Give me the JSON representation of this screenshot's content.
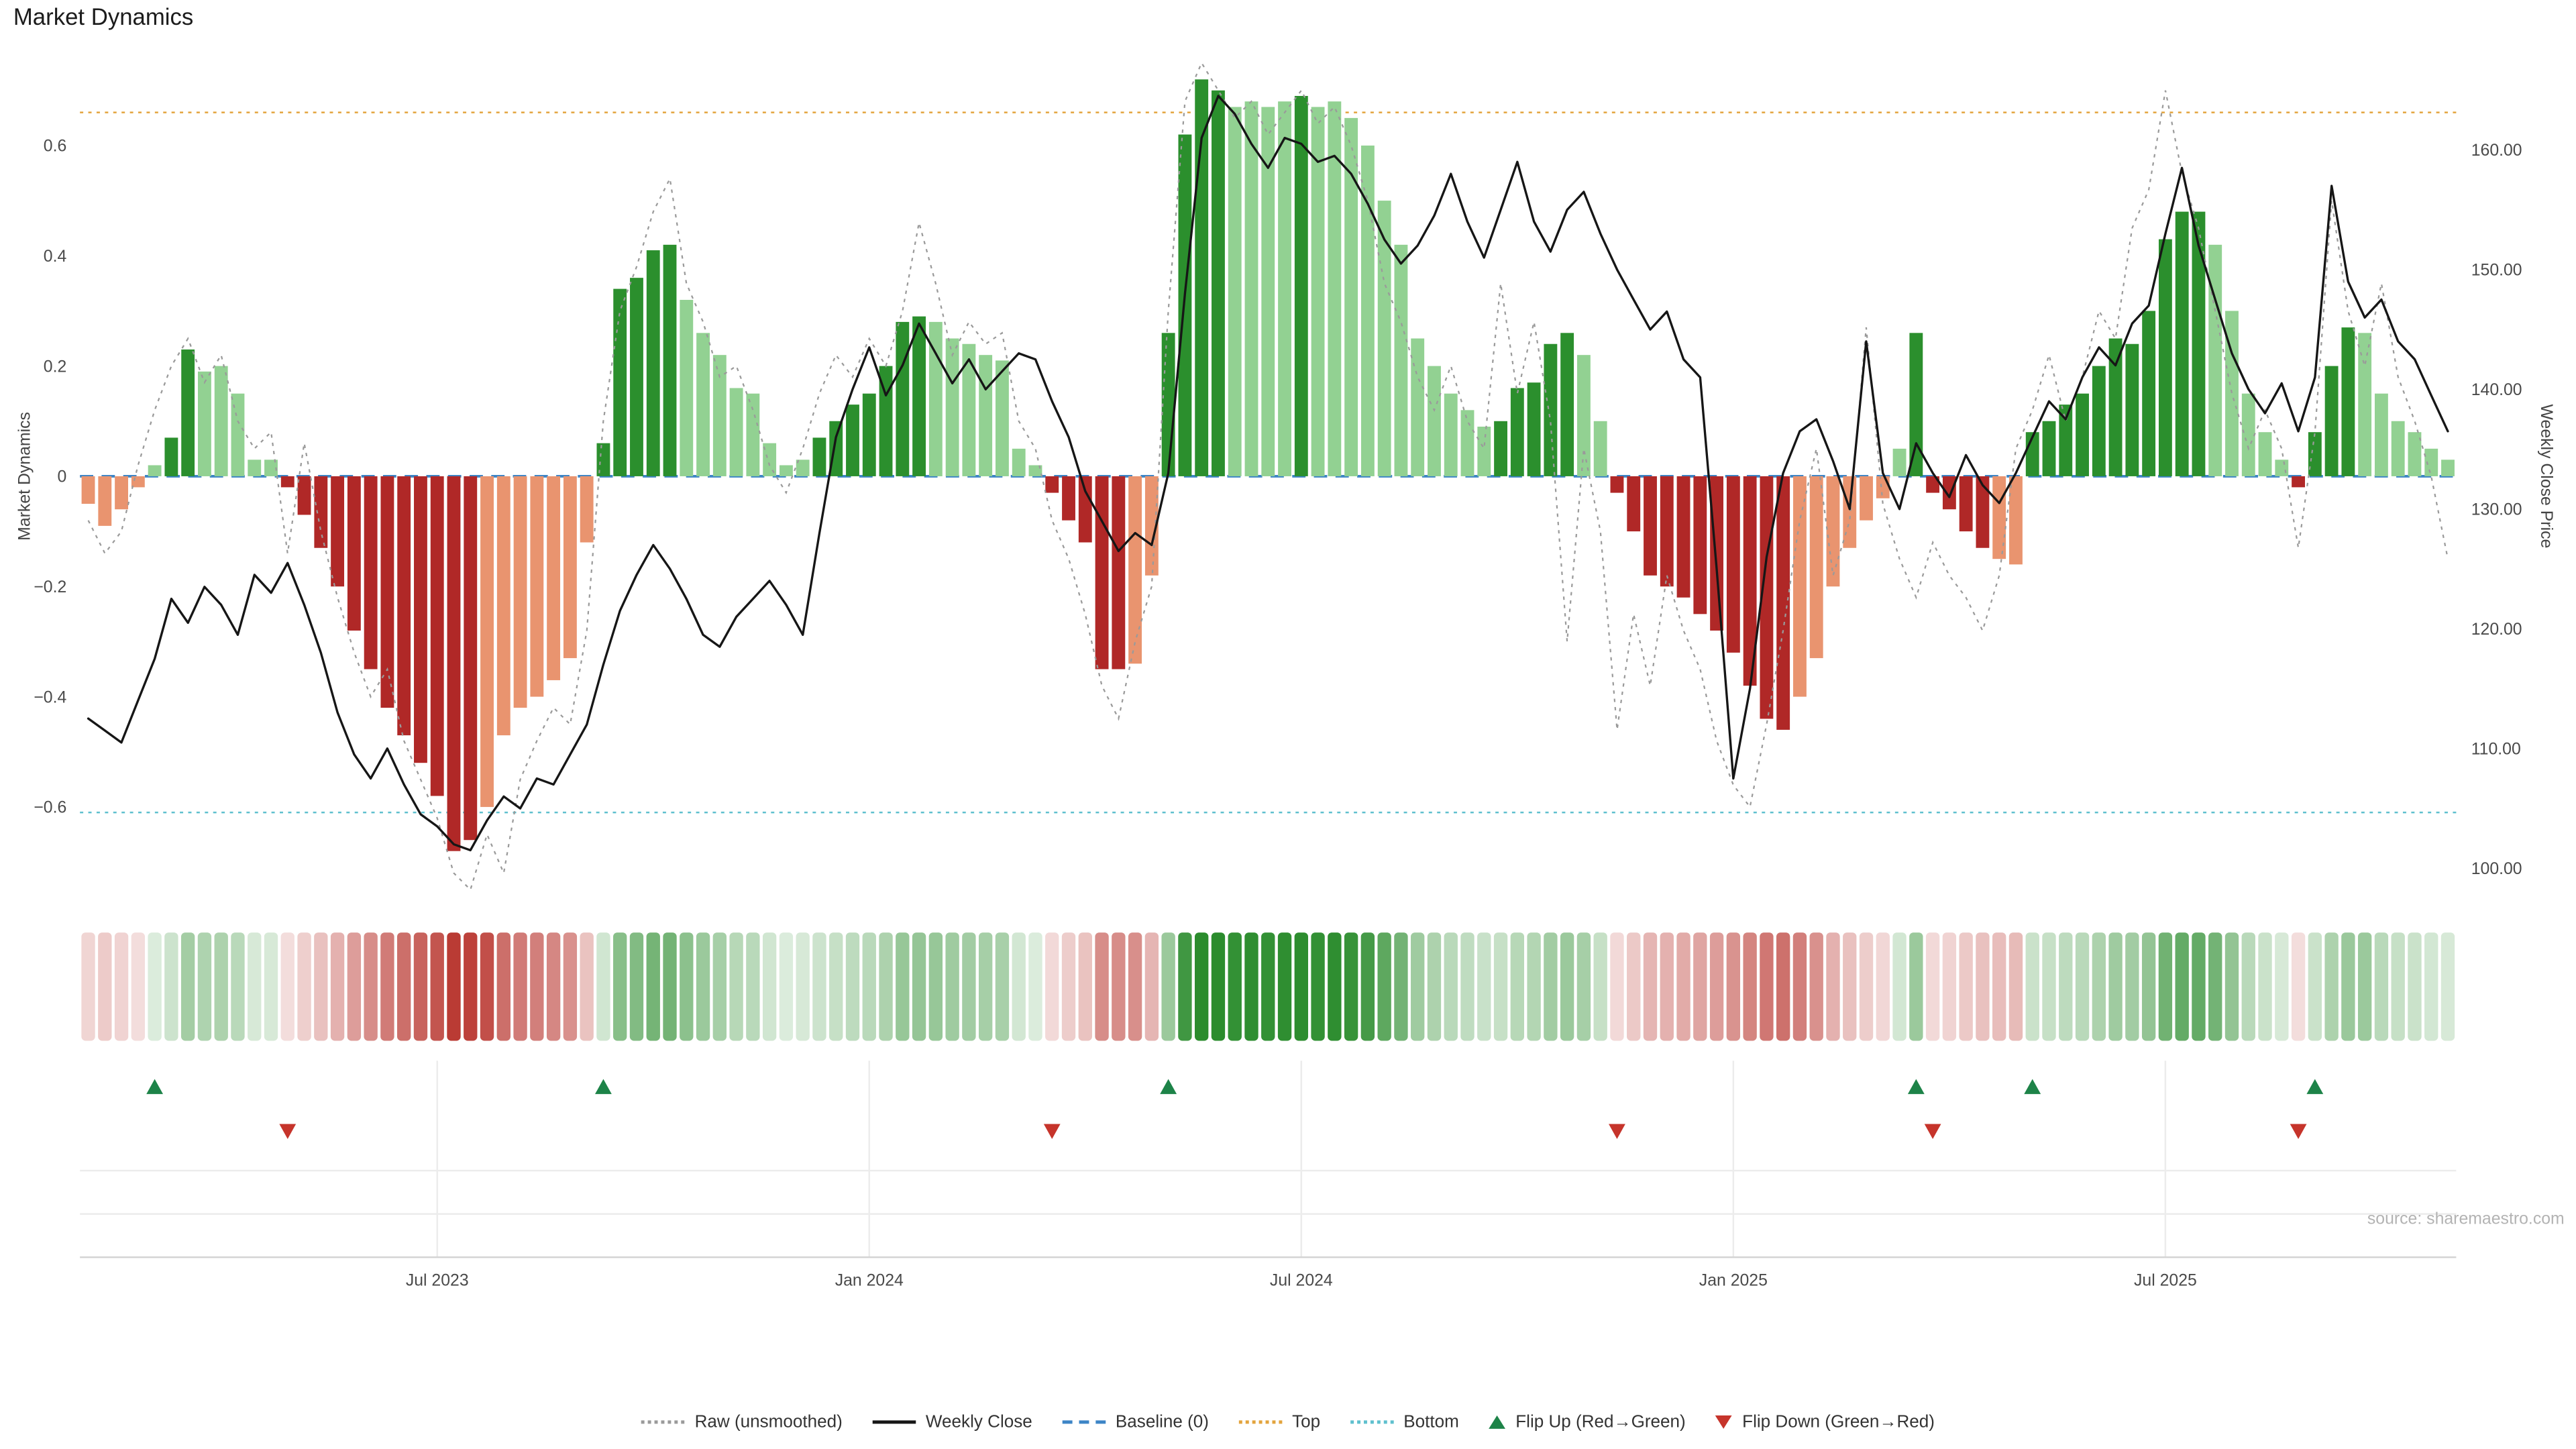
{
  "page": {
    "title": "Market Dynamics",
    "source": "source: sharemaestro.com"
  },
  "chart_data": {
    "type": "bar",
    "title": "Market Dynamics",
    "left_axis": {
      "label": "Market Dynamics",
      "range": [
        -0.76,
        0.76
      ],
      "tick_labels": [
        "0.6",
        "0.4",
        "0.2",
        "0",
        "−0.2",
        "−0.4",
        "−0.6"
      ],
      "tick_values": [
        0.6,
        0.4,
        0.2,
        0,
        -0.2,
        -0.4,
        -0.6
      ]
    },
    "right_axis": {
      "label": "Weekly Close Price",
      "range": [
        97.5,
        167.5
      ],
      "tick_labels": [
        "160.00",
        "150.00",
        "140.00",
        "130.00",
        "120.00",
        "110.00",
        "100.00"
      ],
      "tick_values": [
        160,
        150,
        140,
        130,
        120,
        110,
        100
      ]
    },
    "x_axis": {
      "tick_labels": [
        "Jul 2023",
        "Jan 2024",
        "Jul 2024",
        "Jan 2025",
        "Jul 2025"
      ],
      "tick_indices": [
        21,
        47,
        73,
        99,
        125
      ],
      "n_points": 143,
      "frequency": "weekly"
    },
    "thresholds": {
      "baseline": 0,
      "top": 0.66,
      "bottom": -0.61
    },
    "bars": {
      "name": "Market Dynamics",
      "axis": "left",
      "values": [
        -0.05,
        -0.09,
        -0.06,
        -0.02,
        0.02,
        0.07,
        0.23,
        0.19,
        0.2,
        0.15,
        0.03,
        0.03,
        -0.02,
        -0.07,
        -0.13,
        -0.2,
        -0.28,
        -0.35,
        -0.42,
        -0.47,
        -0.52,
        -0.58,
        -0.68,
        -0.66,
        -0.6,
        -0.47,
        -0.42,
        -0.4,
        -0.37,
        -0.33,
        -0.12,
        0.06,
        0.34,
        0.36,
        0.41,
        0.42,
        0.32,
        0.26,
        0.22,
        0.16,
        0.15,
        0.06,
        0.02,
        0.03,
        0.07,
        0.1,
        0.13,
        0.15,
        0.2,
        0.28,
        0.29,
        0.28,
        0.25,
        0.24,
        0.22,
        0.21,
        0.05,
        0.02,
        -0.03,
        -0.08,
        -0.12,
        -0.35,
        -0.35,
        -0.34,
        -0.18,
        0.26,
        0.62,
        0.72,
        0.7,
        0.67,
        0.68,
        0.67,
        0.68,
        0.69,
        0.67,
        0.68,
        0.65,
        0.6,
        0.5,
        0.42,
        0.25,
        0.2,
        0.15,
        0.12,
        0.09,
        0.1,
        0.16,
        0.17,
        0.24,
        0.26,
        0.22,
        0.1,
        -0.03,
        -0.1,
        -0.18,
        -0.2,
        -0.22,
        -0.25,
        -0.28,
        -0.32,
        -0.38,
        -0.44,
        -0.46,
        -0.4,
        -0.33,
        -0.2,
        -0.13,
        -0.08,
        -0.04,
        0.05,
        0.26,
        -0.03,
        -0.06,
        -0.1,
        -0.13,
        -0.15,
        -0.16,
        0.08,
        0.1,
        0.13,
        0.15,
        0.2,
        0.25,
        0.24,
        0.3,
        0.43,
        0.48,
        0.48,
        0.42,
        0.3,
        0.15,
        0.08,
        0.03,
        -0.02,
        0.08,
        0.2,
        0.27,
        0.26,
        0.15,
        0.1,
        0.08,
        0.05,
        0.03
      ],
      "shades": "rrrrgGGgggggRRRRRRRRRRRRrrrrrrrGGGGGggggggggGGGGGGGgggggggRRRRRrrGGGGggggGgggggggggggGGGGGggRRRRRRRRRRRrrrrrrgGRRRRrrGGGGGGGGGGGgggggRGGGgggggg"
    },
    "raw_line": {
      "name": "Raw (unsmoothed)",
      "axis": "left",
      "values": [
        -0.08,
        -0.14,
        -0.1,
        0.02,
        0.12,
        0.2,
        0.25,
        0.17,
        0.22,
        0.1,
        0.05,
        0.08,
        -0.14,
        0.06,
        -0.1,
        -0.22,
        -0.32,
        -0.4,
        -0.35,
        -0.48,
        -0.55,
        -0.62,
        -0.72,
        -0.75,
        -0.65,
        -0.72,
        -0.55,
        -0.48,
        -0.42,
        -0.45,
        -0.28,
        0.1,
        0.3,
        0.38,
        0.48,
        0.54,
        0.35,
        0.28,
        0.18,
        0.2,
        0.12,
        0.02,
        -0.03,
        0.05,
        0.15,
        0.22,
        0.18,
        0.25,
        0.2,
        0.3,
        0.46,
        0.35,
        0.22,
        0.28,
        0.24,
        0.26,
        0.1,
        0.05,
        -0.08,
        -0.15,
        -0.25,
        -0.38,
        -0.44,
        -0.3,
        -0.2,
        0.3,
        0.68,
        0.75,
        0.7,
        0.65,
        0.68,
        0.62,
        0.66,
        0.7,
        0.64,
        0.67,
        0.6,
        0.5,
        0.35,
        0.28,
        0.18,
        0.12,
        0.2,
        0.1,
        0.05,
        0.35,
        0.15,
        0.28,
        0.1,
        -0.3,
        0.05,
        -0.1,
        -0.46,
        -0.25,
        -0.38,
        -0.18,
        -0.28,
        -0.35,
        -0.48,
        -0.56,
        -0.6,
        -0.45,
        -0.28,
        -0.08,
        0.05,
        -0.18,
        -0.08,
        0.27,
        -0.05,
        -0.15,
        -0.22,
        -0.12,
        -0.18,
        -0.22,
        -0.28,
        -0.18,
        0.05,
        0.12,
        0.22,
        0.1,
        0.18,
        0.3,
        0.25,
        0.45,
        0.52,
        0.7,
        0.55,
        0.45,
        0.3,
        0.15,
        0.05,
        0.12,
        0.05,
        -0.13,
        0.08,
        0.5,
        0.3,
        0.2,
        0.35,
        0.18,
        0.1,
        0.0,
        -0.15
      ]
    },
    "close_line": {
      "name": "Weekly Close",
      "axis": "right",
      "values": [
        112.5,
        111.5,
        110.5,
        114,
        117.5,
        122.5,
        120.5,
        123.5,
        122,
        119.5,
        124.5,
        123,
        125.5,
        122,
        118,
        113,
        109.5,
        107.5,
        110,
        107,
        104.5,
        103.5,
        102,
        101.5,
        104,
        106,
        105,
        107.5,
        107,
        109.5,
        112,
        117,
        121.5,
        124.5,
        127,
        125,
        122.5,
        119.5,
        118.5,
        121,
        122.5,
        124,
        122,
        119.5,
        128,
        136,
        140,
        143.5,
        139.5,
        142,
        145.5,
        143,
        140.5,
        142.5,
        140,
        141.5,
        143,
        142.5,
        139,
        136,
        131.5,
        129,
        126.5,
        128,
        127,
        133,
        148,
        161,
        164.5,
        163,
        160.5,
        158.5,
        161,
        160.5,
        159,
        159.5,
        158,
        155.5,
        152.5,
        150.5,
        152,
        154.5,
        158,
        154,
        151,
        155,
        159,
        154,
        151.5,
        155,
        156.5,
        153,
        150,
        147.5,
        145,
        146.5,
        142.5,
        141,
        125,
        107.5,
        115,
        126,
        133,
        136.5,
        137.5,
        134,
        130,
        144,
        133,
        130,
        135.5,
        133,
        131,
        134.5,
        132,
        130.5,
        133,
        136,
        139,
        137.5,
        141,
        143.5,
        142,
        145.5,
        147,
        153,
        158.5,
        152,
        147.5,
        143,
        140,
        138,
        140.5,
        136.5,
        141,
        157,
        149,
        146,
        147.5,
        144,
        142.5,
        139.5,
        136.5
      ]
    },
    "flip_up_indices": [
      4,
      31,
      65,
      110,
      117,
      134
    ],
    "flip_down_indices": [
      12,
      58,
      92,
      111,
      133
    ],
    "heatmap": {
      "note": "weekly strip, color intensity mirrors bar values",
      "source_series": "bars"
    },
    "colors": {
      "bar": {
        "G": "#2b8f2d",
        "g": "#92d192",
        "R": "#b02827",
        "r": "#e9946f"
      },
      "raw": "#9a9a9a",
      "close": "#161616",
      "baseline": "#3d85c6",
      "top": "#e3a43d",
      "bottom": "#5fc0ce",
      "flip_up": "#1d8348",
      "flip_down": "#c6342b",
      "heat_pos": [
        43,
        140,
        45
      ],
      "heat_neg": [
        185,
        55,
        48
      ]
    },
    "legend": [
      {
        "id": "raw",
        "label": "Raw (unsmoothed)",
        "style": "dotted",
        "color": "#9a9a9a"
      },
      {
        "id": "weekly-close",
        "label": "Weekly Close",
        "style": "solid",
        "color": "#161616"
      },
      {
        "id": "baseline",
        "label": "Baseline (0)",
        "style": "dashed",
        "color": "#3d85c6"
      },
      {
        "id": "top",
        "label": "Top",
        "style": "dotted",
        "color": "#e3a43d"
      },
      {
        "id": "bottom",
        "label": "Bottom",
        "style": "dotted",
        "color": "#5fc0ce"
      },
      {
        "id": "flip-up",
        "label": "Flip Up (Red→Green)",
        "style": "triangle-up",
        "color": "#1d8348"
      },
      {
        "id": "flip-down",
        "label": "Flip Down (Green→Red)",
        "style": "triangle-down",
        "color": "#c6342b"
      }
    ]
  }
}
